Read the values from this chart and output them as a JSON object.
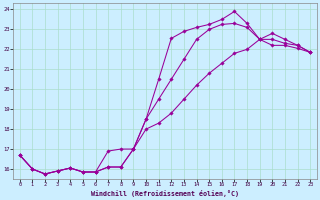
{
  "xlabel": "Windchill (Refroidissement éolien,°C)",
  "bg_color": "#cceeff",
  "grid_color": "#aaddcc",
  "line_color": "#990099",
  "xlim": [
    -0.5,
    23.5
  ],
  "ylim": [
    15.5,
    24.3
  ],
  "xticks": [
    0,
    1,
    2,
    3,
    4,
    5,
    6,
    7,
    8,
    9,
    10,
    11,
    12,
    13,
    14,
    15,
    16,
    17,
    18,
    19,
    20,
    21,
    22,
    23
  ],
  "yticks": [
    16,
    17,
    18,
    19,
    20,
    21,
    22,
    23,
    24
  ],
  "line1_x": [
    0,
    1,
    2,
    3,
    4,
    5,
    6,
    7,
    8,
    9,
    10,
    11,
    12,
    13,
    14,
    15,
    16,
    17,
    18,
    19,
    20,
    21,
    22,
    23
  ],
  "line1_y": [
    16.7,
    16.0,
    15.75,
    15.9,
    16.05,
    15.85,
    15.85,
    16.9,
    17.0,
    17.0,
    18.5,
    20.5,
    22.55,
    22.9,
    23.1,
    23.25,
    23.5,
    23.9,
    23.3,
    22.5,
    22.2,
    22.2,
    22.05,
    21.85
  ],
  "line2_x": [
    0,
    1,
    2,
    3,
    4,
    5,
    6,
    7,
    8,
    9,
    10,
    11,
    12,
    13,
    14,
    15,
    16,
    17,
    18,
    19,
    20,
    21,
    22,
    23
  ],
  "line2_y": [
    16.7,
    16.0,
    15.75,
    15.9,
    16.05,
    15.85,
    15.85,
    16.1,
    16.1,
    17.0,
    18.5,
    19.5,
    20.5,
    21.5,
    22.5,
    23.0,
    23.25,
    23.3,
    23.1,
    22.5,
    22.5,
    22.3,
    22.2,
    21.85
  ],
  "line3_x": [
    0,
    1,
    2,
    3,
    4,
    5,
    6,
    7,
    8,
    9,
    10,
    11,
    12,
    13,
    14,
    15,
    16,
    17,
    18,
    19,
    20,
    21,
    22,
    23
  ],
  "line3_y": [
    16.7,
    16.0,
    15.75,
    15.9,
    16.05,
    15.85,
    15.85,
    16.1,
    16.1,
    17.0,
    18.0,
    18.3,
    18.8,
    19.5,
    20.2,
    20.8,
    21.3,
    21.8,
    22.0,
    22.5,
    22.8,
    22.5,
    22.2,
    21.85
  ]
}
